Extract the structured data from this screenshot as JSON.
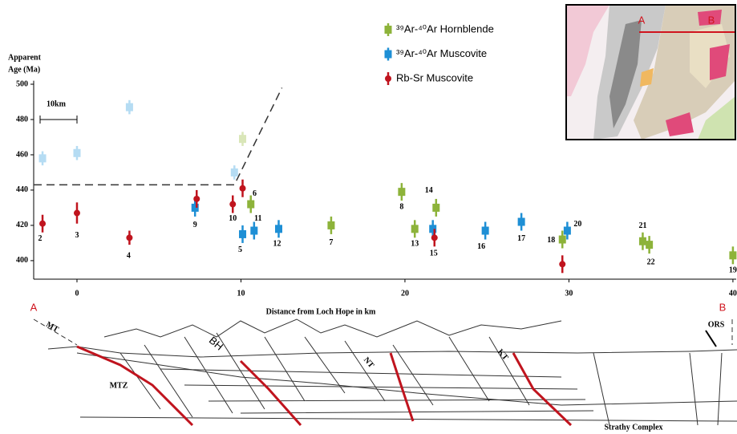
{
  "chart_data": {
    "type": "scatter",
    "y_label_lines": [
      "Apparent",
      "Age (Ma)"
    ],
    "x_label": "Distance from Loch Hope in km",
    "scale_bar_label": "10km",
    "xlim": [
      -2.64,
      40.2
    ],
    "ylim": [
      389.5,
      502
    ],
    "xticks": [
      0,
      10,
      20,
      30,
      40
    ],
    "yticks": [
      400,
      420,
      440,
      460,
      480,
      500
    ],
    "series": [
      {
        "name": "³⁹Ar-⁴⁰Ar Hornblende",
        "color": "#8db33a",
        "marker": "square",
        "x": [
          10.6,
          15.5,
          19.8,
          20.6,
          21.9,
          29.6,
          34.5,
          34.9,
          40
        ],
        "values": [
          432,
          420,
          439,
          418,
          430,
          412,
          411,
          409,
          403
        ],
        "errors": [
          5,
          5,
          5,
          5,
          5,
          5,
          5,
          5,
          5
        ],
        "point_labels": [
          "11",
          "7",
          "8",
          "13",
          "14",
          "18",
          "21",
          "22",
          "19"
        ]
      },
      {
        "name": "³⁹Ar-⁴⁰Ar Muscovite",
        "color": "#1e8fd5",
        "marker": "square",
        "x": [
          7.2,
          10.1,
          10.8,
          12.3,
          21.7,
          24.9,
          27.1,
          29.9
        ],
        "values": [
          430,
          415,
          417,
          418,
          418,
          417,
          422,
          417
        ],
        "errors": [
          5,
          5,
          5,
          5,
          5,
          5,
          5,
          5
        ],
        "point_labels": [
          "9",
          "5",
          null,
          "12",
          "15",
          "16",
          "17",
          "20"
        ]
      },
      {
        "name": "Rb-Sr Muscovite",
        "color": "#c0141e",
        "marker": "circle",
        "x": [
          -2.1,
          0,
          3.2,
          7.3,
          9.5,
          10.1,
          21.8,
          29.6
        ],
        "values": [
          421,
          427,
          413,
          435,
          432,
          441,
          413,
          398
        ],
        "errors": [
          5,
          6,
          4,
          5,
          5,
          5,
          5,
          5
        ],
        "point_labels": [
          "2",
          "3",
          "4",
          null,
          "10",
          "6",
          null,
          null
        ]
      }
    ],
    "faded_points": [
      {
        "color": "#b5dcf3",
        "marker": "square",
        "x": [
          -2.1,
          0,
          3.2,
          9.6
        ],
        "values": [
          458,
          461,
          487,
          450
        ],
        "errors": [
          4,
          4,
          4,
          4
        ]
      },
      {
        "color": "#d9e6b8",
        "marker": "square",
        "x": [
          10.1
        ],
        "values": [
          469
        ],
        "errors": [
          4
        ]
      }
    ],
    "boundary_line": {
      "x": [
        -2.64,
        9.6,
        12.5
      ],
      "values": [
        443,
        443,
        498
      ]
    },
    "section_ends": [
      "A",
      "B"
    ]
  },
  "cross_section": {
    "labels": [
      "MT",
      "BH",
      "NT",
      "KT",
      "MTZ",
      "ORS",
      "Strathy Complex"
    ]
  },
  "inset_map": {
    "labels": [
      "A",
      "B"
    ]
  }
}
